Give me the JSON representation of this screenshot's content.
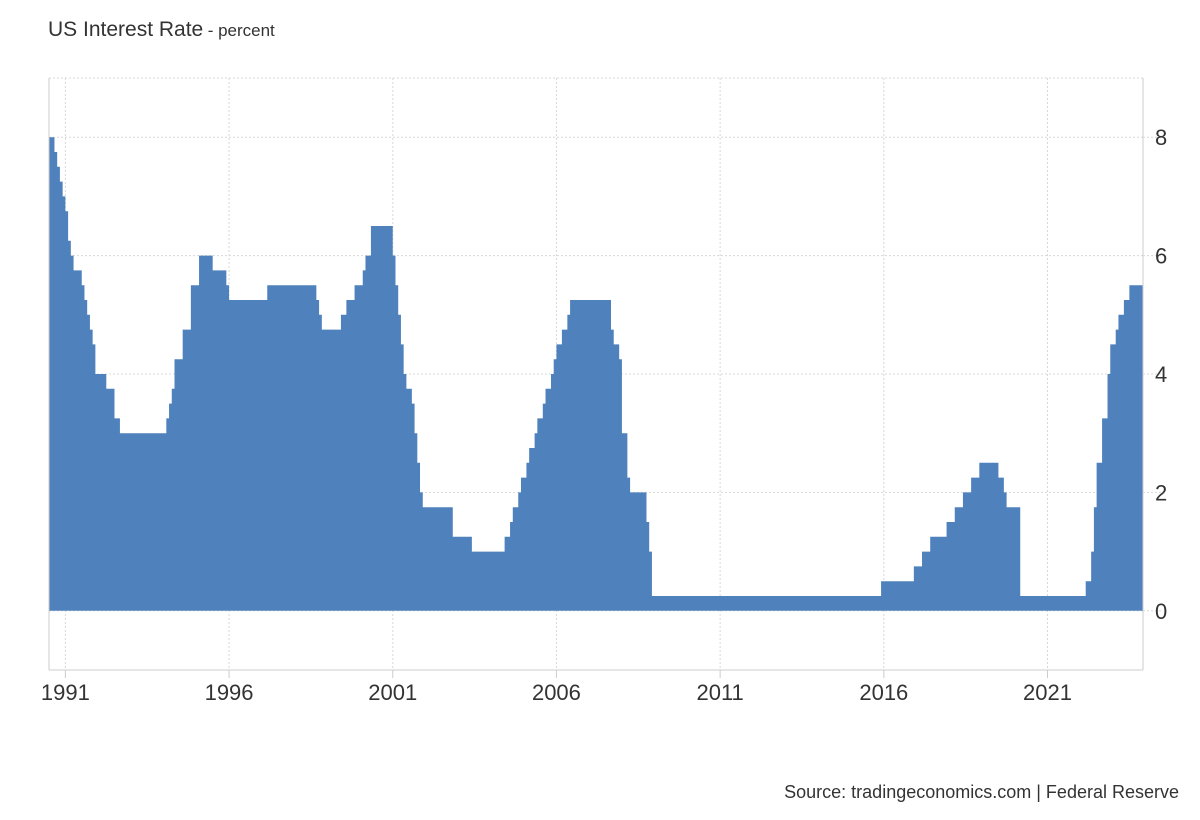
{
  "header": {
    "title": "US Interest Rate",
    "subtitle": "- percent"
  },
  "footer": {
    "source": "Source: tradingeconomics.com | Federal Reserve"
  },
  "colors": {
    "area": "#4f81bd",
    "grid": "#d8d8d8",
    "axis": "#cccccc",
    "text": "#333333"
  },
  "chart_data": {
    "type": "area",
    "step": true,
    "title": "US Interest Rate",
    "subtitle": "percent",
    "xlabel": "",
    "ylabel": "",
    "x_ticks": [
      "1991",
      "1996",
      "2001",
      "2006",
      "2011",
      "2016",
      "2021"
    ],
    "y_ticks": [
      "0",
      "2",
      "4",
      "6",
      "8"
    ],
    "xlim": [
      "1990-07",
      "2023-12"
    ],
    "ylim": [
      -1,
      9
    ],
    "y_axis_position": "right",
    "grid": true,
    "legend": "none",
    "points": [
      [
        "1990-07",
        8.0
      ],
      [
        "1990-08",
        8.0
      ],
      [
        "1990-09",
        7.75
      ],
      [
        "1990-10",
        7.5
      ],
      [
        "1990-11",
        7.25
      ],
      [
        "1990-12",
        7.0
      ],
      [
        "1991-01",
        6.75
      ],
      [
        "1991-02",
        6.25
      ],
      [
        "1991-03",
        6.0
      ],
      [
        "1991-04",
        5.75
      ],
      [
        "1991-06",
        5.75
      ],
      [
        "1991-07",
        5.5
      ],
      [
        "1991-08",
        5.25
      ],
      [
        "1991-09",
        5.0
      ],
      [
        "1991-10",
        4.75
      ],
      [
        "1991-11",
        4.5
      ],
      [
        "1991-12",
        4.0
      ],
      [
        "1992-03",
        4.0
      ],
      [
        "1992-04",
        3.75
      ],
      [
        "1992-06",
        3.75
      ],
      [
        "1992-07",
        3.25
      ],
      [
        "1992-09",
        3.0
      ],
      [
        "1994-01",
        3.0
      ],
      [
        "1994-02",
        3.25
      ],
      [
        "1994-03",
        3.5
      ],
      [
        "1994-04",
        3.75
      ],
      [
        "1994-05",
        4.25
      ],
      [
        "1994-07",
        4.25
      ],
      [
        "1994-08",
        4.75
      ],
      [
        "1994-10",
        4.75
      ],
      [
        "1994-11",
        5.5
      ],
      [
        "1995-01",
        5.5
      ],
      [
        "1995-02",
        6.0
      ],
      [
        "1995-06",
        6.0
      ],
      [
        "1995-07",
        5.75
      ],
      [
        "1995-11",
        5.75
      ],
      [
        "1995-12",
        5.5
      ],
      [
        "1996-01",
        5.25
      ],
      [
        "1997-02",
        5.25
      ],
      [
        "1997-03",
        5.5
      ],
      [
        "1998-08",
        5.5
      ],
      [
        "1998-09",
        5.25
      ],
      [
        "1998-10",
        5.0
      ],
      [
        "1998-11",
        4.75
      ],
      [
        "1999-05",
        4.75
      ],
      [
        "1999-06",
        5.0
      ],
      [
        "1999-07",
        5.0
      ],
      [
        "1999-08",
        5.25
      ],
      [
        "1999-10",
        5.25
      ],
      [
        "1999-11",
        5.5
      ],
      [
        "2000-01",
        5.5
      ],
      [
        "2000-02",
        5.75
      ],
      [
        "2000-03",
        6.0
      ],
      [
        "2000-05",
        6.5
      ],
      [
        "2000-12",
        6.5
      ],
      [
        "2001-01",
        6.0
      ],
      [
        "2001-02",
        5.5
      ],
      [
        "2001-03",
        5.0
      ],
      [
        "2001-04",
        4.5
      ],
      [
        "2001-05",
        4.0
      ],
      [
        "2001-06",
        3.75
      ],
      [
        "2001-08",
        3.5
      ],
      [
        "2001-09",
        3.0
      ],
      [
        "2001-10",
        2.5
      ],
      [
        "2001-11",
        2.0
      ],
      [
        "2001-12",
        1.75
      ],
      [
        "2002-10",
        1.75
      ],
      [
        "2002-11",
        1.25
      ],
      [
        "2003-05",
        1.25
      ],
      [
        "2003-06",
        1.0
      ],
      [
        "2004-05",
        1.0
      ],
      [
        "2004-06",
        1.25
      ],
      [
        "2004-08",
        1.5
      ],
      [
        "2004-09",
        1.75
      ],
      [
        "2004-11",
        2.0
      ],
      [
        "2004-12",
        2.25
      ],
      [
        "2005-02",
        2.5
      ],
      [
        "2005-03",
        2.75
      ],
      [
        "2005-05",
        3.0
      ],
      [
        "2005-06",
        3.25
      ],
      [
        "2005-08",
        3.5
      ],
      [
        "2005-09",
        3.75
      ],
      [
        "2005-11",
        4.0
      ],
      [
        "2005-12",
        4.25
      ],
      [
        "2006-01",
        4.5
      ],
      [
        "2006-03",
        4.75
      ],
      [
        "2006-05",
        5.0
      ],
      [
        "2006-06",
        5.25
      ],
      [
        "2007-08",
        5.25
      ],
      [
        "2007-09",
        4.75
      ],
      [
        "2007-10",
        4.5
      ],
      [
        "2007-12",
        4.25
      ],
      [
        "2008-01",
        3.0
      ],
      [
        "2008-03",
        2.25
      ],
      [
        "2008-04",
        2.0
      ],
      [
        "2008-10",
        1.5
      ],
      [
        "2008-11",
        1.0
      ],
      [
        "2008-12",
        0.25
      ],
      [
        "2015-11",
        0.25
      ],
      [
        "2015-12",
        0.5
      ],
      [
        "2016-11",
        0.5
      ],
      [
        "2016-12",
        0.75
      ],
      [
        "2017-03",
        1.0
      ],
      [
        "2017-06",
        1.25
      ],
      [
        "2017-12",
        1.5
      ],
      [
        "2018-03",
        1.75
      ],
      [
        "2018-06",
        2.0
      ],
      [
        "2018-09",
        2.25
      ],
      [
        "2018-12",
        2.5
      ],
      [
        "2019-06",
        2.5
      ],
      [
        "2019-07",
        2.25
      ],
      [
        "2019-09",
        2.0
      ],
      [
        "2019-10",
        1.75
      ],
      [
        "2020-02",
        1.75
      ],
      [
        "2020-03",
        0.25
      ],
      [
        "2022-02",
        0.25
      ],
      [
        "2022-03",
        0.5
      ],
      [
        "2022-05",
        1.0
      ],
      [
        "2022-06",
        1.75
      ],
      [
        "2022-07",
        2.5
      ],
      [
        "2022-09",
        3.25
      ],
      [
        "2022-11",
        4.0
      ],
      [
        "2022-12",
        4.5
      ],
      [
        "2023-02",
        4.75
      ],
      [
        "2023-03",
        5.0
      ],
      [
        "2023-05",
        5.25
      ],
      [
        "2023-07",
        5.5
      ],
      [
        "2023-12",
        5.5
      ]
    ]
  }
}
